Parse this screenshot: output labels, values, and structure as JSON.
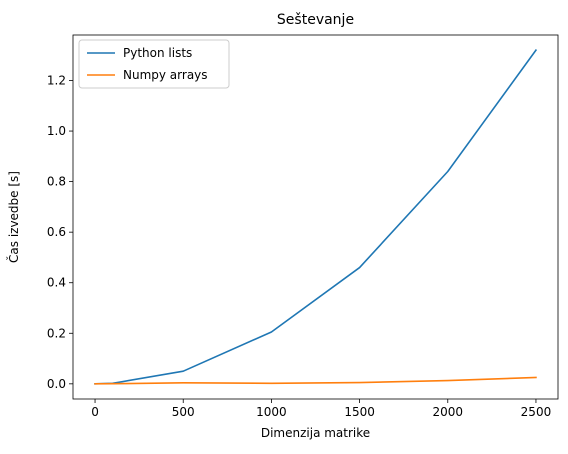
{
  "chart_data": {
    "type": "line",
    "title": "Seštevanje",
    "xlabel": "Dimenzija matrike",
    "ylabel": "Čas izvedbe [s]",
    "xlim": [
      -125,
      2625
    ],
    "ylim": [
      -0.06,
      1.38
    ],
    "xticks": [
      0,
      500,
      1000,
      1500,
      2000,
      2500
    ],
    "xtick_labels": [
      "0",
      "500",
      "1000",
      "1500",
      "2000",
      "2500"
    ],
    "yticks": [
      0.0,
      0.2,
      0.4,
      0.6,
      0.8,
      1.0,
      1.2
    ],
    "ytick_labels": [
      "0.0",
      "0.2",
      "0.4",
      "0.6",
      "0.8",
      "1.0",
      "1.2"
    ],
    "grid": false,
    "legend_position": "top-left",
    "series": [
      {
        "name": "Python lists",
        "color": "#1f77b4",
        "x": [
          0,
          100,
          500,
          1000,
          1500,
          2000,
          2500
        ],
        "y": [
          0.0,
          0.002,
          0.05,
          0.205,
          0.46,
          0.84,
          1.32
        ]
      },
      {
        "name": "Numpy arrays",
        "color": "#ff7f0e",
        "x": [
          0,
          100,
          500,
          1000,
          1500,
          2000,
          2500
        ],
        "y": [
          0.0,
          0.0005,
          0.004,
          0.002,
          0.005,
          0.013,
          0.025
        ]
      }
    ]
  }
}
